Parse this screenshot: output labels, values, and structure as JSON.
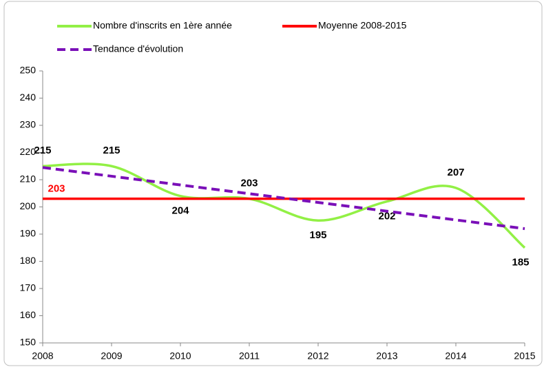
{
  "chart_data": {
    "type": "line",
    "x": [
      2008,
      2009,
      2010,
      2011,
      2012,
      2013,
      2014,
      2015
    ],
    "xlim": [
      2008,
      2015
    ],
    "xticks": [
      2008,
      2009,
      2010,
      2011,
      2012,
      2013,
      2014,
      2015
    ],
    "ylim": [
      150,
      250
    ],
    "yticks": [
      150,
      160,
      170,
      180,
      190,
      200,
      210,
      220,
      230,
      240,
      250
    ],
    "series": [
      {
        "name": "Nombre d'inscrits en 1ère année",
        "color": "#92f045",
        "smooth": true,
        "dash": false,
        "values": [
          215,
          215,
          204,
          203,
          195,
          202,
          207,
          185
        ],
        "labels": "all",
        "label_color": "#000000"
      },
      {
        "name": "Moyenne 2008-2015",
        "color": "#ff0000",
        "smooth": false,
        "dash": false,
        "x": [
          2008,
          2015
        ],
        "values": [
          203,
          203
        ],
        "labels": "first",
        "label_color": "#ff0000"
      },
      {
        "name": "Tendance d'évolution",
        "color": "#7a0fb8",
        "smooth": false,
        "dash": true,
        "x": [
          2008,
          2015
        ],
        "values": [
          214.5,
          192
        ],
        "labels": "none"
      }
    ]
  }
}
